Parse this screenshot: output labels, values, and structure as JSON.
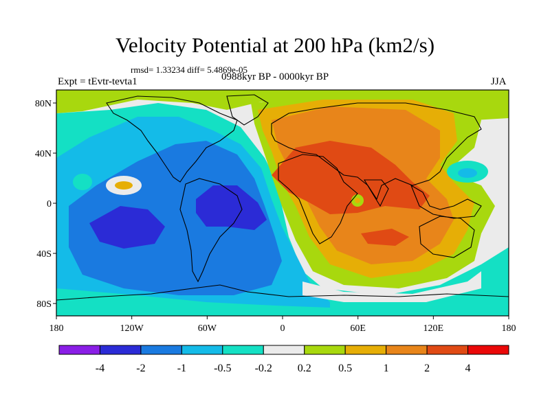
{
  "figure": {
    "title": "Velocity Potential at 200 hPa (km2/s)",
    "stats": "rmsd= 1.33234 diff= 5.4869e-05",
    "experiment": "Expt = tEvtr-tevta1",
    "period": "0988kyr BP - 0000kyr BP",
    "season": "JJA"
  },
  "map": {
    "variable": "Velocity potential anomaly",
    "level": "200 hPa",
    "units": "km2/s",
    "lat_ticks": [
      "80N",
      "40N",
      "0",
      "40S",
      "80S"
    ],
    "lon_ticks": [
      "180",
      "120W",
      "60W",
      "0",
      "60E",
      "120E",
      "180"
    ],
    "lat_range": [
      -90,
      90
    ],
    "lon_range": [
      -180,
      180
    ],
    "regions": [
      {
        "name": "positive-center-eurasia-africa",
        "level_min": 2,
        "level_max": 4
      },
      {
        "name": "negative-center-south-america-atlantic",
        "level_min": -4,
        "level_max": -2
      },
      {
        "name": "negative-center-south-pacific",
        "level_min": -4,
        "level_max": -2
      }
    ]
  },
  "colorbar": {
    "labels": [
      "-4",
      "-2",
      "-1",
      "-0.5",
      "-0.2",
      "0.2",
      "0.5",
      "1",
      "2",
      "4"
    ],
    "colors": [
      "#8a1ee6",
      "#2b2bd6",
      "#1a7ae0",
      "#14bbe8",
      "#14e0c4",
      "#ebebeb",
      "#a8d80e",
      "#e6ae06",
      "#e8851a",
      "#e04a14",
      "#ea0808"
    ]
  }
}
